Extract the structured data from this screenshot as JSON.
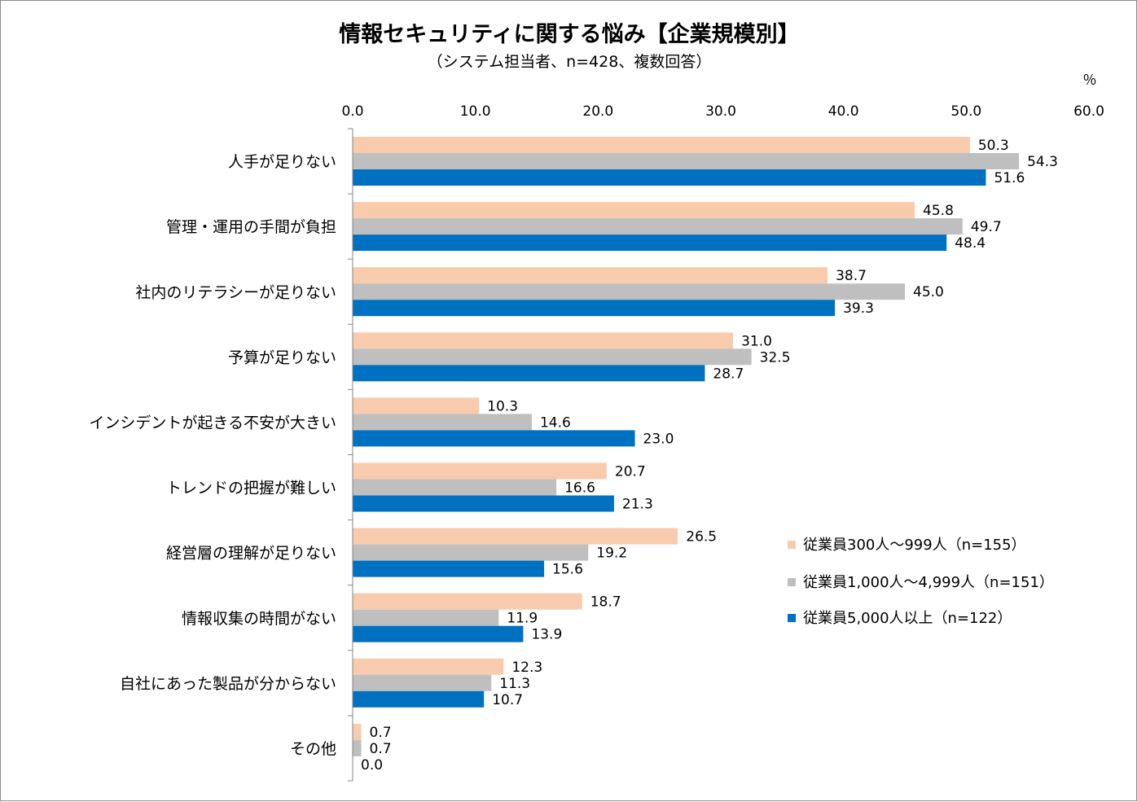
{
  "chart_data": {
    "type": "bar",
    "orientation": "horizontal",
    "title": "情報セキュリティに関する悩み【企業規模別】",
    "subtitle": "（システム担当者、n=428、複数回答）",
    "unit_label": "％",
    "xlim": [
      0,
      60
    ],
    "x_ticks": [
      "0.0",
      "10.0",
      "20.0",
      "30.0",
      "40.0",
      "50.0",
      "60.0"
    ],
    "categories": [
      "人手が足りない",
      "管理・運用の手間が負担",
      "社内のリテラシーが足りない",
      "予算が足りない",
      "インシデントが起きる不安が大きい",
      "トレンドの把握が難しい",
      "経営層の理解が足りない",
      "情報収集の時間がない",
      "自社にあった製品が分からない",
      "その他"
    ],
    "series": [
      {
        "name": "従業員300人～999人（n=155）",
        "color": "#f8cbad",
        "values": [
          50.3,
          45.8,
          38.7,
          31.0,
          10.3,
          20.7,
          26.5,
          18.7,
          12.3,
          0.7
        ],
        "labels": [
          "50.3",
          "45.8",
          "38.7",
          "31.0",
          "10.3",
          "20.7",
          "26.5",
          "18.7",
          "12.3",
          "0.7"
        ]
      },
      {
        "name": "従業員1,000人～4,999人（n=151）",
        "color": "#bfbfbf",
        "values": [
          54.3,
          49.7,
          45.0,
          32.5,
          14.6,
          16.6,
          19.2,
          11.9,
          11.3,
          0.7
        ],
        "labels": [
          "54.3",
          "49.7",
          "45.0",
          "32.5",
          "14.6",
          "16.6",
          "19.2",
          "11.9",
          "11.3",
          "0.7"
        ]
      },
      {
        "name": "従業員5,000人以上（n=122）",
        "color": "#0070c0",
        "values": [
          51.6,
          48.4,
          39.3,
          28.7,
          23.0,
          21.3,
          15.6,
          13.9,
          10.7,
          0.0
        ],
        "labels": [
          "51.6",
          "48.4",
          "39.3",
          "28.7",
          "23.0",
          "21.3",
          "15.6",
          "13.9",
          "10.7",
          "0.0"
        ]
      }
    ],
    "legend_position": "right-middle",
    "grid": false
  }
}
